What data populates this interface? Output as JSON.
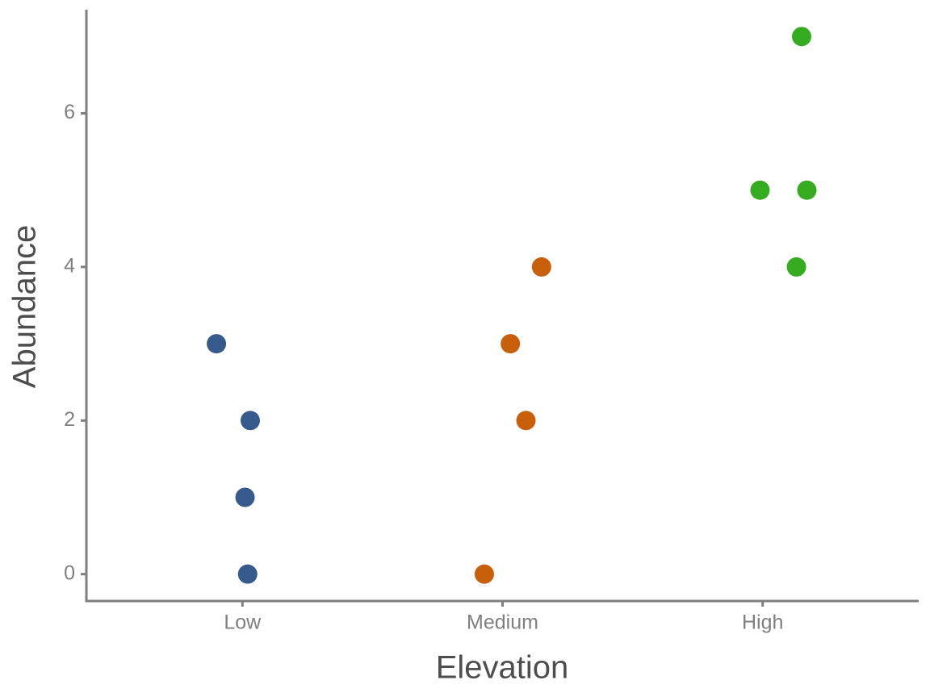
{
  "chart_data": {
    "type": "scatter",
    "x_label": "Elevation",
    "y_label": "Abundance",
    "xlim": [
      0.4,
      3.6
    ],
    "xticks": [
      {
        "value": 1,
        "label": "Low"
      },
      {
        "value": 2,
        "label": "Medium"
      },
      {
        "value": 3,
        "label": "High"
      }
    ],
    "ylim": [
      -0.35,
      7.35
    ],
    "yticks": [
      0,
      2,
      4,
      6
    ],
    "grid": false,
    "series": [
      {
        "color": "#365a8c",
        "x": [
          0.9,
          1.03,
          1.01,
          1.02
        ],
        "values": [
          3,
          2,
          1,
          0
        ]
      },
      {
        "color": "#c85f0a",
        "x": [
          2.15,
          2.03,
          2.09,
          1.93
        ],
        "values": [
          4,
          3,
          2,
          0
        ]
      },
      {
        "color": "#35ab20",
        "x": [
          3.15,
          2.99,
          3.17,
          3.13
        ],
        "values": [
          7,
          5,
          5,
          4
        ]
      }
    ]
  }
}
